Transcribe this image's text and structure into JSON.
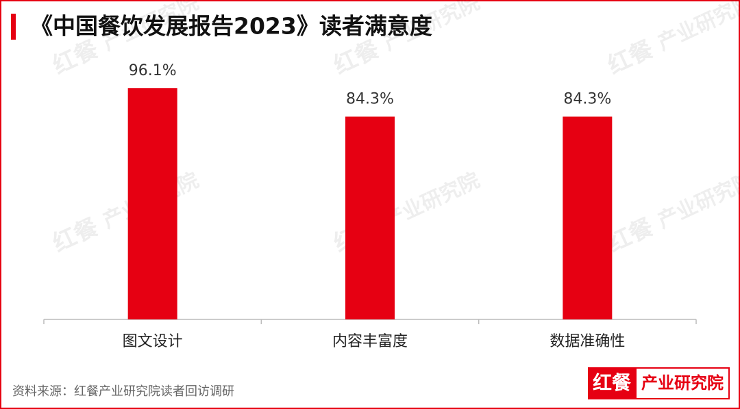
{
  "chart_data": {
    "type": "bar",
    "title": "《中国餐饮发展报告2023》读者满意度",
    "categories": [
      "图文设计",
      "内容丰富度",
      "数据准确性"
    ],
    "values": [
      96.1,
      84.3,
      84.3
    ],
    "value_labels": [
      "96.1%",
      "84.3%",
      "84.3%"
    ],
    "color": "#e60012",
    "source": "资料来源：红餐产业研究院读者回访调研",
    "logo": {
      "brand": "红餐",
      "name": "产业研究院"
    }
  }
}
